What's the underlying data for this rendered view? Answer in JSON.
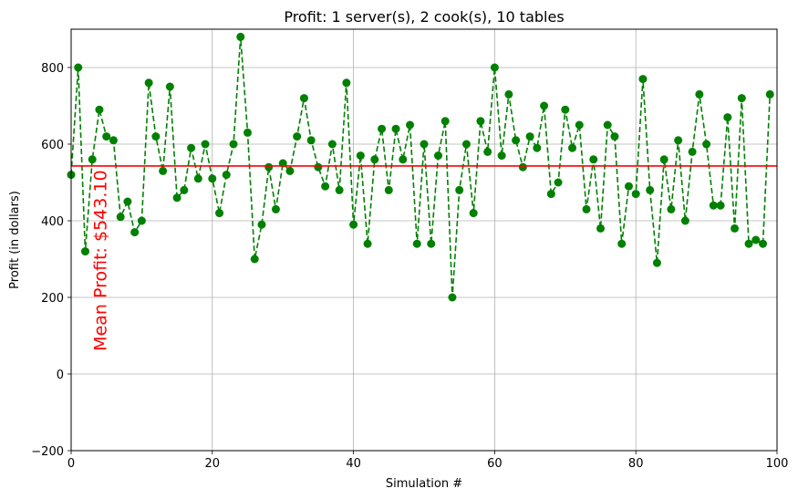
{
  "chart_data": {
    "type": "line",
    "title": "Profit: 1 server(s), 2 cook(s), 10 tables",
    "xlabel": "Simulation #",
    "ylabel": "Profit (in dollars)",
    "xlim": [
      0,
      100
    ],
    "ylim": [
      -200,
      900
    ],
    "xticks": [
      0,
      20,
      40,
      60,
      80,
      100
    ],
    "yticks": [
      -200,
      0,
      200,
      400,
      600,
      800
    ],
    "xtick_labels": [
      "0",
      "20",
      "40",
      "60",
      "80",
      "100"
    ],
    "ytick_labels": [
      "−200",
      "0",
      "200",
      "400",
      "600",
      "800"
    ],
    "grid": true,
    "series": [
      {
        "style": "dashed-line-with-circle-markers",
        "color": "#008000",
        "x": [
          0,
          1,
          2,
          3,
          4,
          5,
          6,
          7,
          8,
          9,
          10,
          11,
          12,
          13,
          14,
          15,
          16,
          17,
          18,
          19,
          20,
          21,
          22,
          23,
          24,
          25,
          26,
          27,
          28,
          29,
          30,
          31,
          32,
          33,
          34,
          35,
          36,
          37,
          38,
          39,
          40,
          41,
          42,
          43,
          44,
          45,
          46,
          47,
          48,
          49,
          50,
          51,
          52,
          53,
          54,
          55,
          56,
          57,
          58,
          59,
          60,
          61,
          62,
          63,
          64,
          65,
          66,
          67,
          68,
          69,
          70,
          71,
          72,
          73,
          74,
          75,
          76,
          77,
          78,
          79,
          80,
          81,
          82,
          83,
          84,
          85,
          86,
          87,
          88,
          89,
          90,
          91,
          92,
          93,
          94,
          95,
          96,
          97,
          98,
          99
        ],
        "y": [
          520,
          800,
          320,
          560,
          690,
          620,
          610,
          410,
          450,
          370,
          400,
          760,
          620,
          530,
          750,
          460,
          480,
          590,
          510,
          600,
          510,
          420,
          520,
          600,
          880,
          630,
          300,
          390,
          540,
          430,
          550,
          530,
          620,
          720,
          610,
          540,
          490,
          600,
          480,
          760,
          390,
          570,
          340,
          560,
          640,
          480,
          640,
          560,
          650,
          340,
          600,
          340,
          570,
          660,
          200,
          480,
          600,
          420,
          660,
          580,
          800,
          570,
          730,
          610,
          540,
          620,
          590,
          700,
          470,
          500,
          690,
          590,
          650,
          430,
          560,
          380,
          650,
          620,
          340,
          490,
          470,
          770,
          480,
          290,
          560,
          430,
          610,
          400,
          580,
          730,
          600,
          440,
          440,
          670,
          380,
          720,
          340,
          350,
          340,
          730
        ]
      }
    ],
    "reference_line": {
      "y": 543.1,
      "color": "#ff0000"
    },
    "annotation": {
      "text": "Mean Profit: $543.10",
      "color": "#ff0000",
      "rotation": "vertical"
    }
  }
}
